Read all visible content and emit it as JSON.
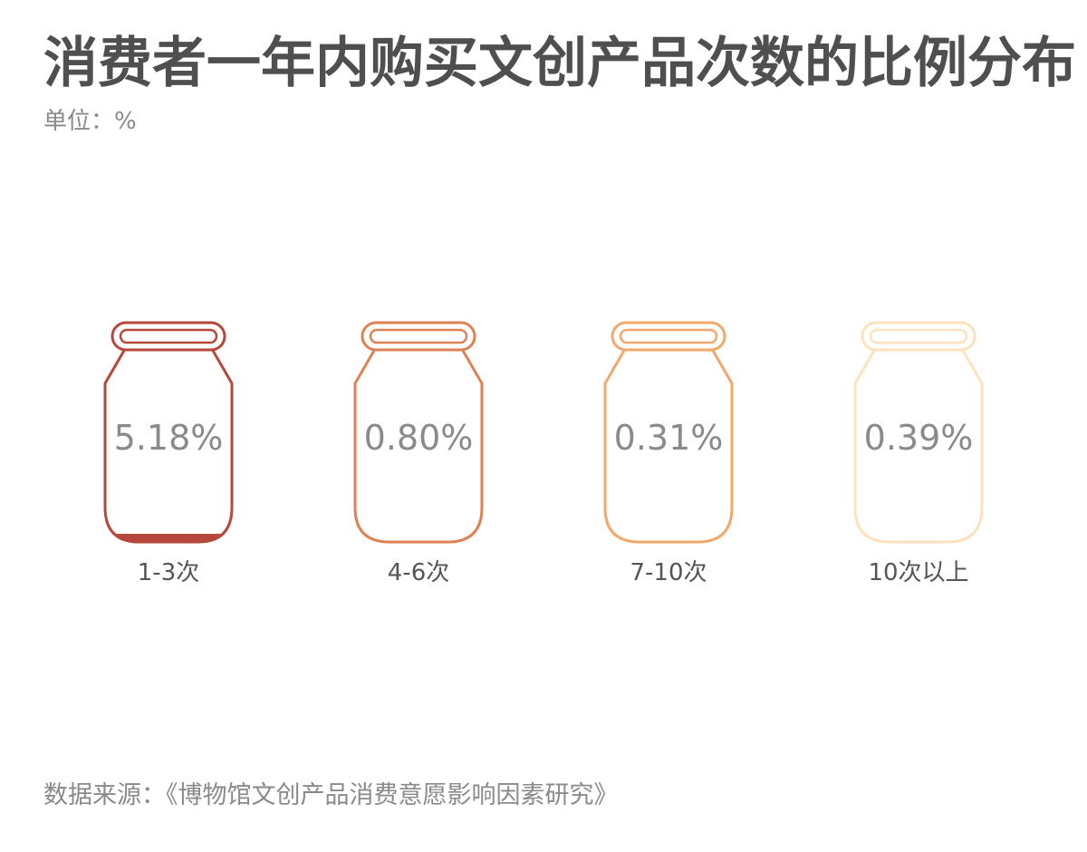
{
  "title": "消费者一年内购买文创产品次数的比例分布",
  "unit_label": "单位：%",
  "source": "数据来源：《博物馆文创产品消费意愿影响因素研究》",
  "chart_data": {
    "type": "bar",
    "title": "消费者一年内购买文创产品次数的比例分布",
    "subtitle": "单位：%",
    "categories": [
      "1-3次",
      "4-6次",
      "7-10次",
      "10次以上"
    ],
    "values": [
      5.18,
      0.8,
      0.31,
      0.39
    ],
    "value_labels": [
      "5.18%",
      "0.80%",
      "0.31%",
      "0.39%"
    ],
    "fill_max": 100,
    "colors": [
      "#b5483a",
      "#de8256",
      "#f2a86a",
      "#fde2bd"
    ],
    "value_label_color": "#8a8a8a",
    "category_label_color": "#555555",
    "grid": false,
    "legend": "none"
  }
}
